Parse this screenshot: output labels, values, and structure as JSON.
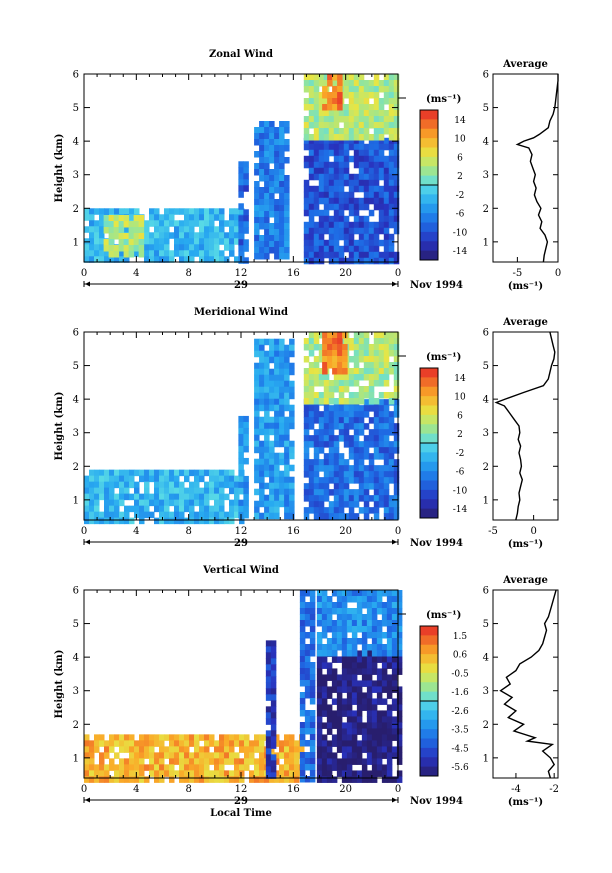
{
  "figure": {
    "x_axis_title": "Local Time",
    "date_label": "Nov 1994",
    "day_label": "29",
    "units_label": "(ms⁻¹)",
    "average_title": "Average"
  },
  "chart_data": [
    {
      "type": "heatmap",
      "title": "Zonal Wind",
      "ylabel": "Height (km)",
      "xlabel": "",
      "x_ticks": [
        "0",
        "4",
        "8",
        "12",
        "16",
        "20",
        "0"
      ],
      "y_ticks": [
        "1",
        "2",
        "3",
        "4",
        "5",
        "6"
      ],
      "xlim": [
        0,
        24
      ],
      "ylim": [
        0.4,
        6
      ],
      "colorbar": {
        "ticks": [
          "14",
          "10",
          "6",
          "2",
          "-2",
          "-6",
          "-10",
          "-14"
        ],
        "range": [
          -16,
          16
        ]
      },
      "data_regions": [
        {
          "x": [
            0,
            12
          ],
          "y": [
            0.4,
            2.0
          ],
          "value": -3
        },
        {
          "x": [
            1.5,
            4.5
          ],
          "y": [
            0.7,
            1.8
          ],
          "value": 4
        },
        {
          "x": [
            11.8,
            12.5
          ],
          "y": [
            0.5,
            3.4
          ],
          "value": -9
        },
        {
          "x": [
            13,
            15.5
          ],
          "y": [
            0.5,
            4.6
          ],
          "value": -7
        },
        {
          "x": [
            16.8,
            24
          ],
          "y": [
            0.5,
            4.1
          ],
          "value": -10
        },
        {
          "x": [
            16.8,
            24
          ],
          "y": [
            4.1,
            6
          ],
          "value": 4
        },
        {
          "x": [
            18.2,
            19.5
          ],
          "y": [
            5.0,
            6
          ],
          "value": 12
        }
      ],
      "profile": {
        "title": "Average",
        "xlabel": "(ms⁻¹)",
        "x_ticks": [
          "-5",
          "0"
        ],
        "xlim": [
          -8,
          0
        ],
        "height": [
          0.4,
          0.6,
          0.8,
          1.0,
          1.2,
          1.4,
          1.6,
          1.8,
          2.0,
          2.2,
          2.4,
          2.6,
          2.8,
          3.0,
          3.2,
          3.4,
          3.6,
          3.8,
          3.9,
          4.0,
          4.1,
          4.2,
          4.4,
          4.6,
          4.8,
          5.0,
          5.2,
          5.4,
          5.6,
          5.8,
          6.0
        ],
        "value": [
          -1.8,
          -1.7,
          -1.5,
          -1.3,
          -1.6,
          -2.2,
          -2.0,
          -2.4,
          -2.1,
          -2.6,
          -2.9,
          -2.7,
          -3.0,
          -2.8,
          -3.1,
          -3.4,
          -3.2,
          -3.6,
          -5.0,
          -4.2,
          -3.0,
          -2.3,
          -1.2,
          -1.0,
          -0.6,
          -0.4,
          -0.3,
          -0.2,
          -0.1,
          0.0,
          0.0
        ]
      }
    },
    {
      "type": "heatmap",
      "title": "Meridional Wind",
      "ylabel": "Height (km)",
      "xlabel": "",
      "x_ticks": [
        "0",
        "4",
        "8",
        "12",
        "16",
        "20",
        "0"
      ],
      "y_ticks": [
        "1",
        "2",
        "3",
        "4",
        "5",
        "6"
      ],
      "xlim": [
        0,
        24
      ],
      "ylim": [
        0.4,
        6
      ],
      "colorbar": {
        "ticks": [
          "14",
          "10",
          "6",
          "2",
          "-2",
          "-6",
          "-10",
          "-14"
        ],
        "range": [
          -16,
          16
        ]
      },
      "data_regions": [
        {
          "x": [
            0,
            12
          ],
          "y": [
            0.4,
            1.9
          ],
          "value": -3
        },
        {
          "x": [
            11.8,
            12.5
          ],
          "y": [
            0.5,
            3.5
          ],
          "value": -5
        },
        {
          "x": [
            13,
            16
          ],
          "y": [
            0.5,
            5.8
          ],
          "value": -5
        },
        {
          "x": [
            16.8,
            24
          ],
          "y": [
            0.5,
            4.0
          ],
          "value": -8
        },
        {
          "x": [
            16.8,
            24
          ],
          "y": [
            4.0,
            6
          ],
          "value": 4
        },
        {
          "x": [
            18.2,
            19.8
          ],
          "y": [
            4.8,
            6
          ],
          "value": 12
        }
      ],
      "profile": {
        "title": "Average",
        "xlabel": "(ms⁻¹)",
        "x_ticks": [
          "-5",
          "0"
        ],
        "xlim": [
          -5,
          3
        ],
        "height": [
          0.4,
          0.6,
          0.8,
          1.0,
          1.2,
          1.4,
          1.6,
          1.8,
          2.0,
          2.2,
          2.4,
          2.6,
          2.8,
          3.0,
          3.2,
          3.4,
          3.6,
          3.8,
          3.9,
          4.0,
          4.2,
          4.4,
          4.6,
          4.8,
          5.0,
          5.2,
          5.4,
          5.6,
          5.8,
          6.0
        ],
        "value": [
          -2.2,
          -2.0,
          -1.9,
          -1.7,
          -1.8,
          -1.6,
          -1.4,
          -1.7,
          -1.5,
          -1.6,
          -1.8,
          -1.6,
          -1.9,
          -1.7,
          -1.8,
          -2.4,
          -3.0,
          -3.6,
          -4.6,
          -3.5,
          -1.2,
          1.2,
          1.8,
          2.0,
          2.2,
          2.5,
          2.6,
          2.4,
          2.2,
          2.0
        ]
      }
    },
    {
      "type": "heatmap",
      "title": "Vertical Wind",
      "ylabel": "Height (km)",
      "xlabel": "Local Time",
      "x_ticks": [
        "0",
        "4",
        "8",
        "12",
        "16",
        "20",
        "0"
      ],
      "y_ticks": [
        "1",
        "2",
        "3",
        "4",
        "5",
        "6"
      ],
      "xlim": [
        0,
        24
      ],
      "ylim": [
        0.4,
        6
      ],
      "colorbar": {
        "ticks": [
          "1.5",
          "0.6",
          "-0.5",
          "-1.6",
          "-2.6",
          "-3.5",
          "-4.5",
          "-5.6"
        ],
        "range": [
          -6,
          2
        ]
      },
      "data_regions": [
        {
          "x": [
            0,
            16.5
          ],
          "y": [
            0.4,
            1.7
          ],
          "value": 0.4
        },
        {
          "x": [
            13.9,
            14.4
          ],
          "y": [
            0.4,
            4.5
          ],
          "value": -5
        },
        {
          "x": [
            16.5,
            17.5
          ],
          "y": [
            0.4,
            6
          ],
          "value": -4
        },
        {
          "x": [
            17.8,
            24
          ],
          "y": [
            0.4,
            4.2
          ],
          "value": -5.8
        },
        {
          "x": [
            17.8,
            24
          ],
          "y": [
            4.2,
            6
          ],
          "value": -3.5
        }
      ],
      "profile": {
        "title": "Average",
        "xlabel": "(ms⁻¹)",
        "x_ticks": [
          "-4",
          "-2"
        ],
        "xlim": [
          -5.2,
          -1.8
        ],
        "height": [
          0.4,
          0.6,
          0.8,
          1.0,
          1.2,
          1.4,
          1.5,
          1.6,
          1.8,
          2.0,
          2.2,
          2.4,
          2.6,
          2.8,
          3.0,
          3.2,
          3.4,
          3.6,
          3.8,
          4.0,
          4.2,
          4.4,
          4.6,
          4.8,
          5.0,
          5.2,
          5.4,
          5.6,
          5.8,
          6.0
        ],
        "value": [
          -2.2,
          -2.3,
          -2.0,
          -2.2,
          -2.6,
          -2.1,
          -3.4,
          -3.0,
          -4.1,
          -3.6,
          -4.4,
          -4.0,
          -4.6,
          -4.2,
          -4.8,
          -4.3,
          -4.5,
          -4.0,
          -3.8,
          -3.2,
          -2.8,
          -2.6,
          -2.5,
          -2.4,
          -2.5,
          -2.3,
          -2.2,
          -2.1,
          -2.0,
          -1.9
        ]
      }
    }
  ]
}
